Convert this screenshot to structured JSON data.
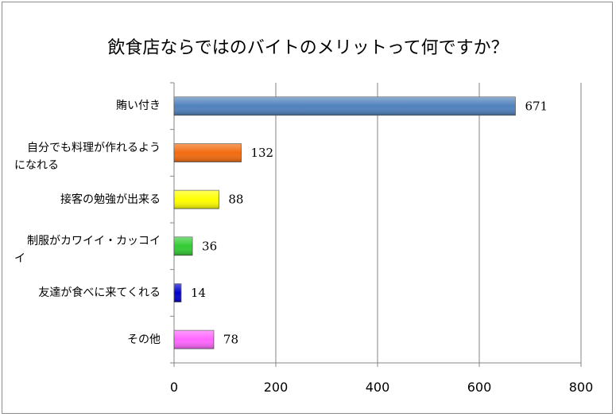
{
  "chart_data": {
    "type": "bar",
    "orientation": "horizontal",
    "title": "飲食店ならではのバイトのメリットって何ですか？",
    "categories": [
      "賄い付き",
      "自分でも料理が作れるようになれる",
      "接客の勉強が出来る",
      "制服がカワイイ・カッコイイ",
      "友達が食べに来てくれる",
      "その他"
    ],
    "category_lines": [
      [
        "賄い付き"
      ],
      [
        "自分でも料理が作れるよう",
        "になれる"
      ],
      [
        "接客の勉強が出来る"
      ],
      [
        "制服がカワイイ・カッコイ",
        "イ"
      ],
      [
        "友達が食べに来てくれる"
      ],
      [
        "その他"
      ]
    ],
    "values": [
      671,
      132,
      88,
      36,
      14,
      78
    ],
    "colors": [
      "#4f81bd",
      "#f26b0f",
      "#ffff00",
      "#33cc33",
      "#0000cc",
      "#ff66ff"
    ],
    "xlim": [
      0,
      800
    ],
    "xticks": [
      0,
      200,
      400,
      600,
      800
    ],
    "grid": true,
    "legend": "none"
  }
}
